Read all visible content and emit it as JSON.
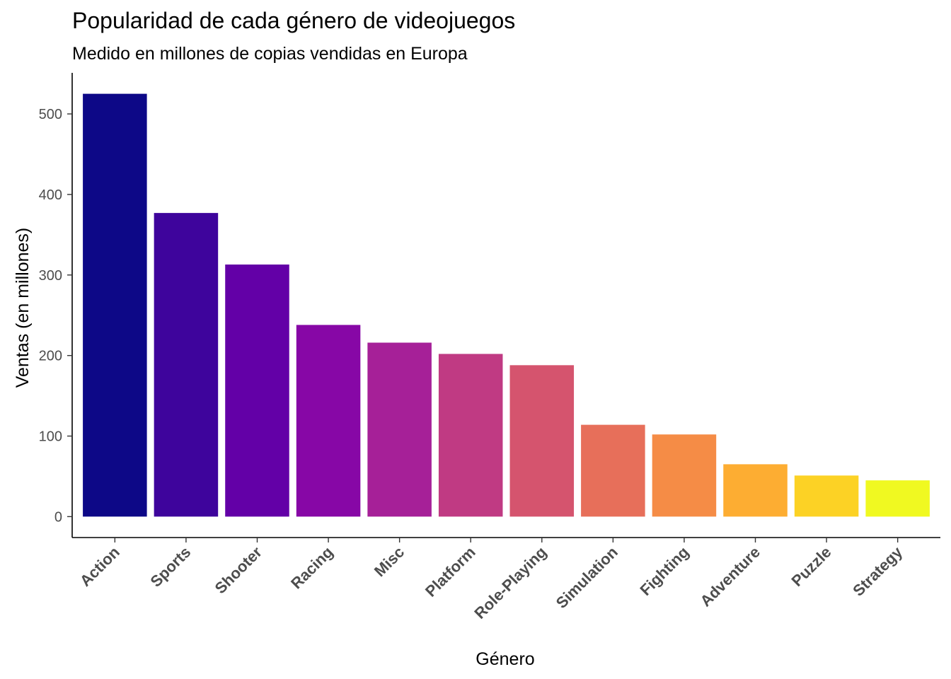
{
  "chart_data": {
    "type": "bar",
    "title": "Popularidad de cada género de videojuegos",
    "subtitle": "Medido en millones de copias vendidas en Europa",
    "xlabel": "Género",
    "ylabel": "Ventas (en millones)",
    "categories": [
      "Action",
      "Sports",
      "Shooter",
      "Racing",
      "Misc",
      "Platform",
      "Role-Playing",
      "Simulation",
      "Fighting",
      "Adventure",
      "Puzzle",
      "Strategy"
    ],
    "values": [
      525,
      377,
      313,
      238,
      216,
      202,
      188,
      114,
      102,
      65,
      51,
      45
    ],
    "colors": [
      "#0D0887",
      "#3E049C",
      "#6300A7",
      "#8707A6",
      "#A62098",
      "#C03A83",
      "#D5546E",
      "#E76F5A",
      "#F58C46",
      "#FDAD32",
      "#FCD225",
      "#F0F921"
    ],
    "yticks": [
      0,
      100,
      200,
      300,
      400,
      500
    ],
    "ylim": [
      -26,
      551
    ],
    "grid": false,
    "legend": "none"
  }
}
